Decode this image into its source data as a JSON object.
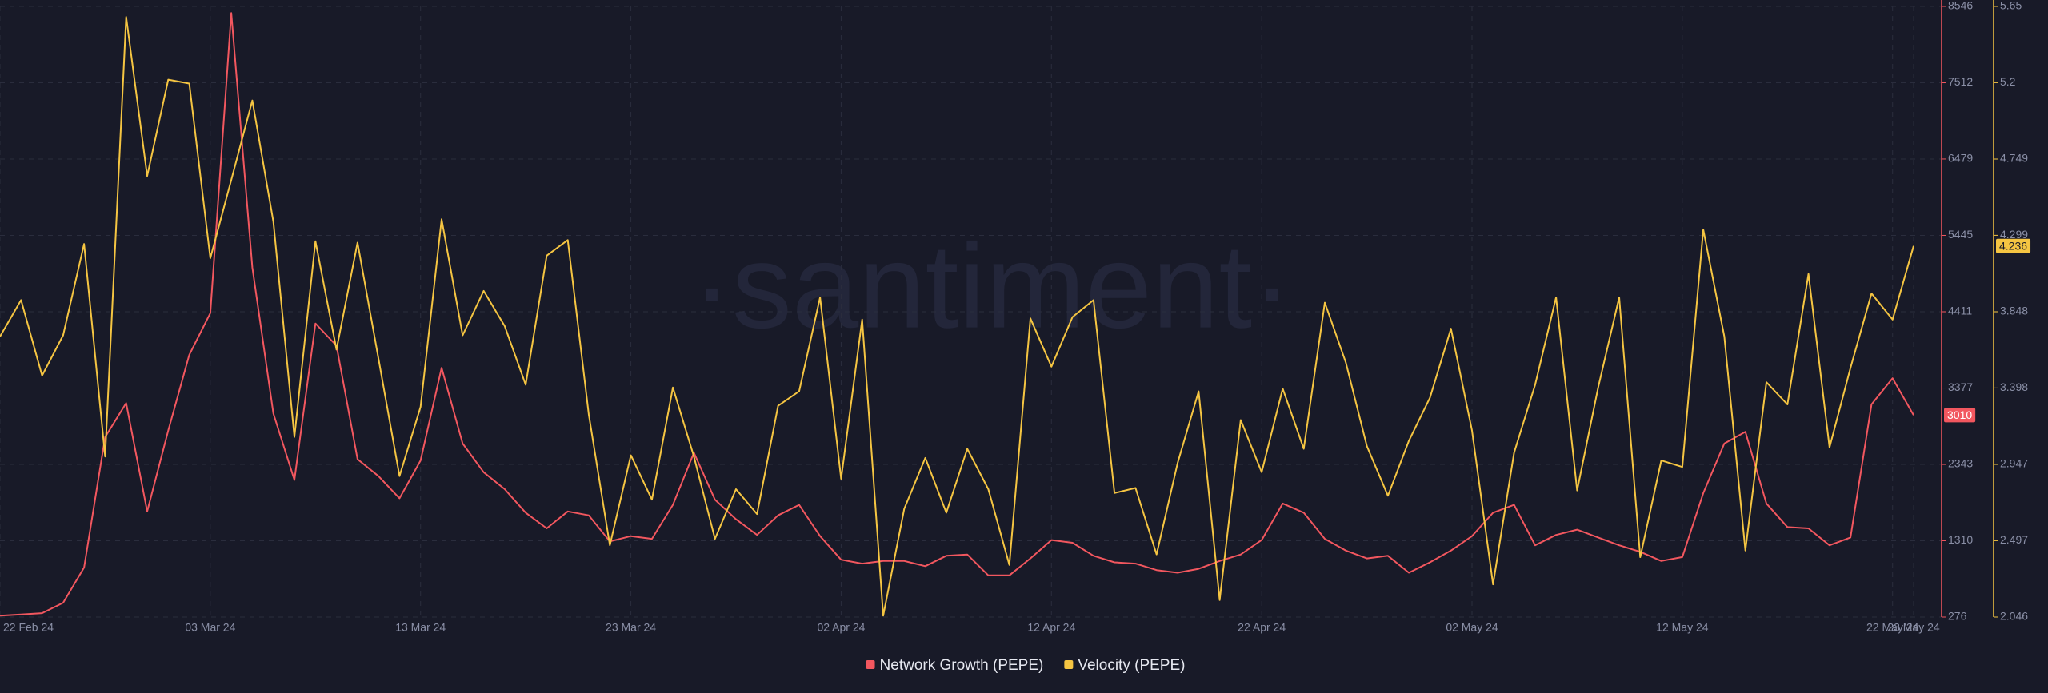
{
  "chart_data": {
    "type": "line",
    "watermark": "·santiment·",
    "x": [
      "22 Feb 24",
      "23 Feb 24",
      "24 Feb 24",
      "25 Feb 24",
      "26 Feb 24",
      "27 Feb 24",
      "28 Feb 24",
      "29 Feb 24",
      "01 Mar 24",
      "02 Mar 24",
      "03 Mar 24",
      "04 Mar 24",
      "05 Mar 24",
      "06 Mar 24",
      "07 Mar 24",
      "08 Mar 24",
      "09 Mar 24",
      "10 Mar 24",
      "11 Mar 24",
      "12 Mar 24",
      "13 Mar 24",
      "14 Mar 24",
      "15 Mar 24",
      "16 Mar 24",
      "17 Mar 24",
      "18 Mar 24",
      "19 Mar 24",
      "20 Mar 24",
      "21 Mar 24",
      "22 Mar 24",
      "23 Mar 24",
      "24 Mar 24",
      "25 Mar 24",
      "26 Mar 24",
      "27 Mar 24",
      "28 Mar 24",
      "29 Mar 24",
      "30 Mar 24",
      "31 Mar 24",
      "01 Apr 24",
      "02 Apr 24",
      "03 Apr 24",
      "04 Apr 24",
      "05 Apr 24",
      "06 Apr 24",
      "07 Apr 24",
      "08 Apr 24",
      "09 Apr 24",
      "10 Apr 24",
      "11 Apr 24",
      "12 Apr 24",
      "13 Apr 24",
      "14 Apr 24",
      "15 Apr 24",
      "16 Apr 24",
      "17 Apr 24",
      "18 Apr 24",
      "19 Apr 24",
      "20 Apr 24",
      "21 Apr 24",
      "22 Apr 24",
      "23 Apr 24",
      "24 Apr 24",
      "25 Apr 24",
      "26 Apr 24",
      "27 Apr 24",
      "28 Apr 24",
      "29 Apr 24",
      "30 Apr 24",
      "01 May 24",
      "02 May 24",
      "03 May 24",
      "04 May 24",
      "05 May 24",
      "06 May 24",
      "07 May 24",
      "08 May 24",
      "09 May 24",
      "10 May 24",
      "11 May 24",
      "12 May 24",
      "13 May 24",
      "14 May 24",
      "15 May 24",
      "16 May 24",
      "17 May 24",
      "18 May 24",
      "19 May 24",
      "20 May 24",
      "21 May 24",
      "22 May 24",
      "23 May 24"
    ],
    "xticks": [
      "22 Feb 24",
      "03 Mar 24",
      "13 Mar 24",
      "23 Mar 24",
      "02 Apr 24",
      "12 Apr 24",
      "22 Apr 24",
      "02 May 24",
      "12 May 24",
      "22 May 24",
      "23 May 24"
    ],
    "series": [
      {
        "name": "Network Growth (PEPE)",
        "color": "#f2575f",
        "axis": "y",
        "values": [
          294,
          311,
          329,
          470,
          947,
          2714,
          3174,
          1707,
          2803,
          3828,
          4393,
          8457,
          5012,
          3033,
          2132,
          4252,
          3951,
          2414,
          2184,
          1884,
          2396,
          3651,
          2626,
          2237,
          2008,
          1690,
          1478,
          1707,
          1654,
          1301,
          1372,
          1336,
          1796,
          2502,
          1866,
          1601,
          1389,
          1654,
          1796,
          1372,
          1053,
          1000,
          1036,
          1036,
          965,
          1106,
          1124,
          841,
          841,
          1071,
          1319,
          1283,
          1106,
          1018,
          1000,
          912,
          877,
          930,
          1036,
          1124,
          1319,
          1814,
          1690,
          1336,
          1177,
          1071,
          1106,
          877,
          1018,
          1177,
          1372,
          1690,
          1796,
          1248,
          1389,
          1460,
          1354,
          1248,
          1160,
          1036,
          1089,
          1955,
          2626,
          2785,
          1814,
          1495,
          1478,
          1248,
          1354,
          3156,
          3510,
          3010
        ]
      },
      {
        "name": "Velocity (PEPE)",
        "color": "#f5c542",
        "axis": "y2",
        "values": [
          3.702,
          3.917,
          3.471,
          3.709,
          4.248,
          2.993,
          5.588,
          4.649,
          5.218,
          5.195,
          4.164,
          4.626,
          5.095,
          4.379,
          3.109,
          4.264,
          3.625,
          4.256,
          3.571,
          2.878,
          3.286,
          4.394,
          3.709,
          3.971,
          3.763,
          3.417,
          4.179,
          4.271,
          3.24,
          2.47,
          3.001,
          2.739,
          3.401,
          2.993,
          2.508,
          2.801,
          2.654,
          3.293,
          3.378,
          3.933,
          2.862,
          3.802,
          2.054,
          2.685,
          2.985,
          2.662,
          3.039,
          2.801,
          2.354,
          3.809,
          3.524,
          3.817,
          3.917,
          2.778,
          2.808,
          2.416,
          2.955,
          3.378,
          2.146,
          3.209,
          2.901,
          3.394,
          3.039,
          3.902,
          3.548,
          3.055,
          2.762,
          3.086,
          3.34,
          3.748,
          3.147,
          2.239,
          3.016,
          3.417,
          3.933,
          2.793,
          3.401,
          3.933,
          2.4,
          2.97,
          2.932,
          4.333,
          3.702,
          2.439,
          3.432,
          3.301,
          4.071,
          3.047,
          3.517,
          3.956,
          3.802,
          4.236
        ]
      }
    ],
    "ylim": [
      276,
      8546
    ],
    "yticks": [
      276,
      1310,
      2343,
      3377,
      4411,
      5445,
      6479,
      7512,
      8546
    ],
    "y2lim": [
      2.046,
      5.65
    ],
    "y2ticks": [
      2.046,
      2.497,
      2.947,
      3.398,
      3.848,
      4.299,
      4.749,
      5.2,
      5.65
    ],
    "grid": true
  }
}
